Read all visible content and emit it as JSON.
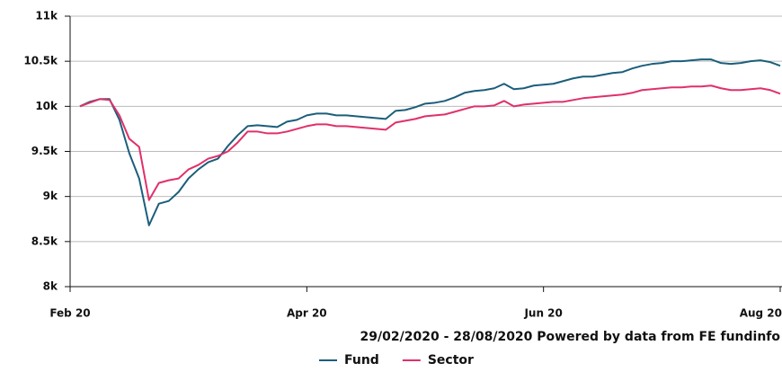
{
  "chart_data": {
    "type": "line",
    "subtitle": "29/02/2020 - 28/08/2020 Powered by data from FE fundinfo",
    "categories": [
      "Feb 20",
      null,
      null,
      null,
      null,
      null,
      null,
      null,
      null,
      null,
      null,
      null,
      null,
      null,
      null,
      null,
      null,
      null,
      null,
      null,
      null,
      null,
      null,
      null,
      "Apr 20",
      null,
      null,
      null,
      null,
      null,
      null,
      null,
      null,
      null,
      null,
      null,
      null,
      null,
      null,
      null,
      null,
      null,
      null,
      null,
      null,
      null,
      null,
      null,
      "Jun 20",
      null,
      null,
      null,
      null,
      null,
      null,
      null,
      null,
      null,
      null,
      null,
      null,
      null,
      null,
      null,
      null,
      null,
      null,
      null,
      null,
      null,
      null,
      null,
      "Aug 20"
    ],
    "series": [
      {
        "name": "Fund",
        "color": "#1b5e7b",
        "values": [
          null,
          10000,
          10050,
          10080,
          10080,
          9850,
          9480,
          9200,
          8680,
          8920,
          8950,
          9050,
          9200,
          9300,
          9380,
          9420,
          9560,
          9680,
          9780,
          9790,
          9780,
          9770,
          9830,
          9850,
          9900,
          9920,
          9920,
          9900,
          9900,
          9890,
          9880,
          9870,
          9860,
          9950,
          9960,
          9990,
          10030,
          10040,
          10060,
          10100,
          10150,
          10170,
          10180,
          10200,
          10250,
          10190,
          10200,
          10230,
          10240,
          10250,
          10280,
          10310,
          10330,
          10330,
          10350,
          10370,
          10380,
          10420,
          10450,
          10470,
          10480,
          10500,
          10500,
          10510,
          10520,
          10520,
          10480,
          10470,
          10480,
          10500,
          10510,
          10490,
          10450
        ]
      },
      {
        "name": "Sector",
        "color": "#e0306a",
        "values": [
          null,
          10000,
          10040,
          10080,
          10070,
          9900,
          9640,
          9550,
          8960,
          9150,
          9180,
          9200,
          9300,
          9350,
          9420,
          9450,
          9500,
          9600,
          9720,
          9720,
          9700,
          9700,
          9720,
          9750,
          9780,
          9800,
          9800,
          9780,
          9780,
          9770,
          9760,
          9750,
          9740,
          9820,
          9840,
          9860,
          9890,
          9900,
          9910,
          9940,
          9970,
          10000,
          10000,
          10010,
          10060,
          10000,
          10020,
          10030,
          10040,
          10050,
          10050,
          10070,
          10090,
          10100,
          10110,
          10120,
          10130,
          10150,
          10180,
          10190,
          10200,
          10210,
          10210,
          10220,
          10220,
          10230,
          10200,
          10180,
          10180,
          10190,
          10200,
          10180,
          10140
        ]
      }
    ],
    "ylim": [
      8000,
      11000
    ],
    "yticks": [
      {
        "value": 8000,
        "label": "8k"
      },
      {
        "value": 8500,
        "label": "8.5k"
      },
      {
        "value": 9000,
        "label": "9k"
      },
      {
        "value": 9500,
        "label": "9.5k"
      },
      {
        "value": 10000,
        "label": "10k"
      },
      {
        "value": 10500,
        "label": "10.5k"
      },
      {
        "value": 11000,
        "label": "11k"
      }
    ],
    "grid": true
  }
}
